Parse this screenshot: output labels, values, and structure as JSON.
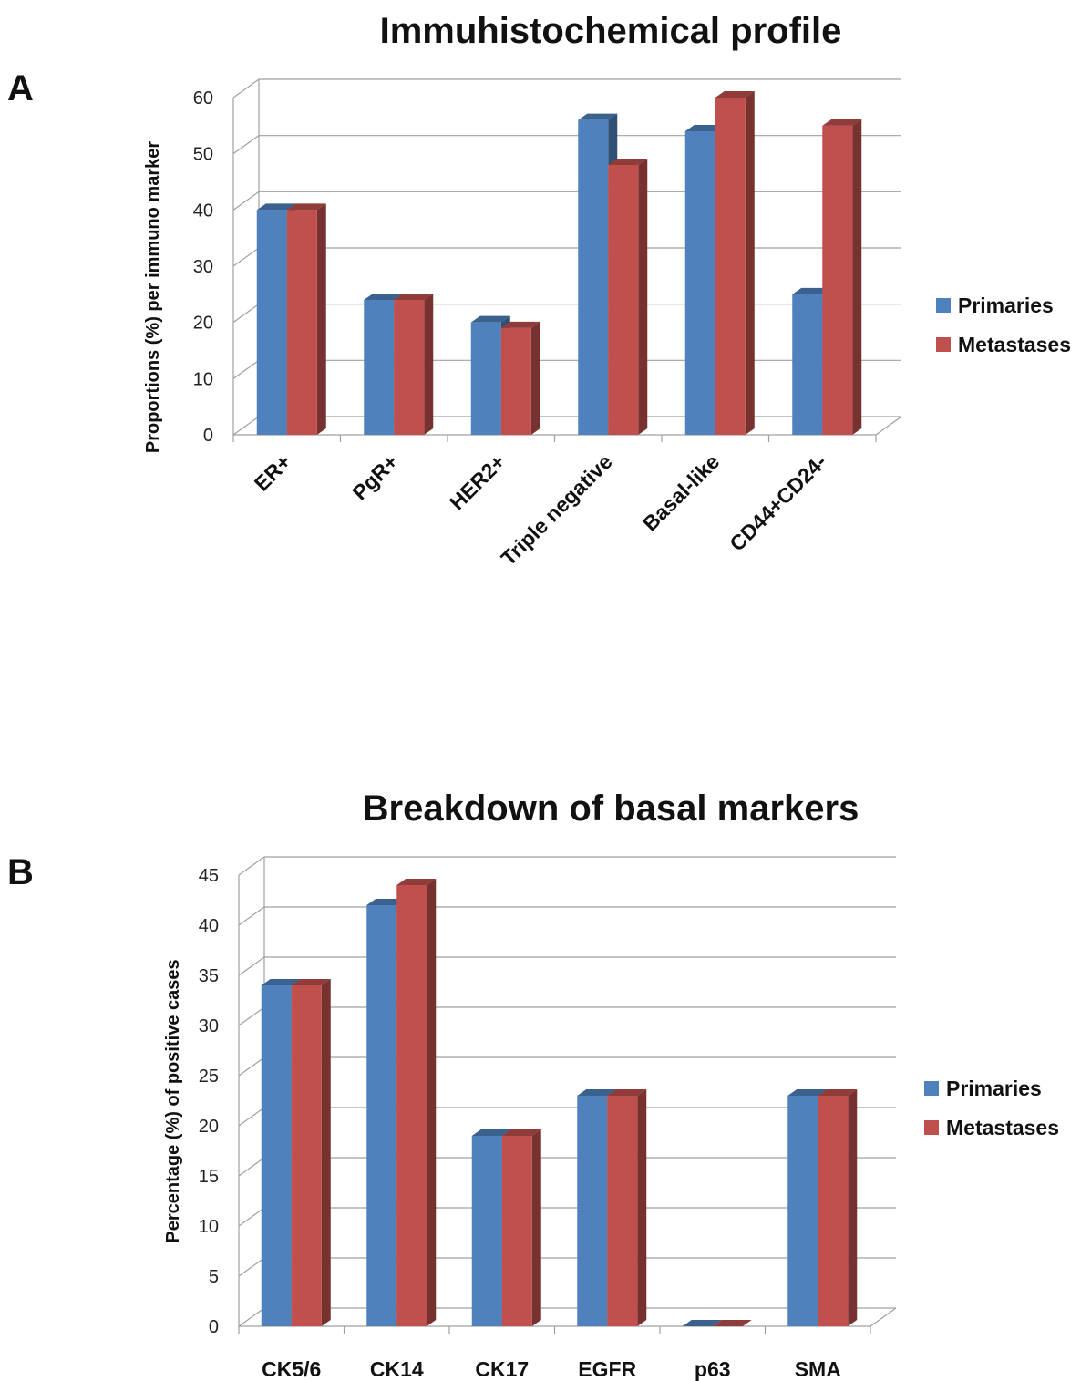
{
  "chart_data": [
    {
      "panel_label": "A",
      "type": "bar",
      "style": "3d-clustered-column",
      "title": "Immuhistochemical profile",
      "xlabel": "",
      "ylabel": "Proportions (%) per immuno marker",
      "ylim": [
        0,
        60
      ],
      "yticks": [
        "0",
        "10",
        "20",
        "30",
        "40",
        "50",
        "60"
      ],
      "categories": [
        "ER+",
        "PgR+",
        "HER2+",
        "Triple negative",
        "Basal-like",
        "CD44+CD24-"
      ],
      "category_label_rotation": "diagonal",
      "grid": true,
      "legend_position": "right",
      "series": [
        {
          "name": "Primaries",
          "color": "#4F81BD",
          "values": [
            40,
            24,
            20,
            56,
            54,
            25
          ]
        },
        {
          "name": "Metastases",
          "color": "#C0504D",
          "values": [
            40,
            24,
            19,
            48,
            60,
            55
          ]
        }
      ]
    },
    {
      "panel_label": "B",
      "type": "bar",
      "style": "3d-clustered-column",
      "title": "Breakdown of basal markers",
      "xlabel": "",
      "ylabel": "Percentage (%) of positive cases",
      "ylim": [
        0,
        45
      ],
      "yticks": [
        "0",
        "5",
        "10",
        "15",
        "20",
        "25",
        "30",
        "35",
        "40",
        "45"
      ],
      "categories": [
        "CK5/6",
        "CK14",
        "CK17",
        "EGFR",
        "p63",
        "SMA"
      ],
      "category_label_rotation": "horizontal",
      "grid": true,
      "legend_position": "right",
      "series": [
        {
          "name": "Primaries",
          "color": "#4F81BD",
          "values": [
            34,
            42,
            19,
            23,
            0,
            23
          ]
        },
        {
          "name": "Metastases",
          "color": "#C0504D",
          "values": [
            34,
            44,
            19,
            23,
            0,
            23
          ]
        }
      ]
    }
  ]
}
